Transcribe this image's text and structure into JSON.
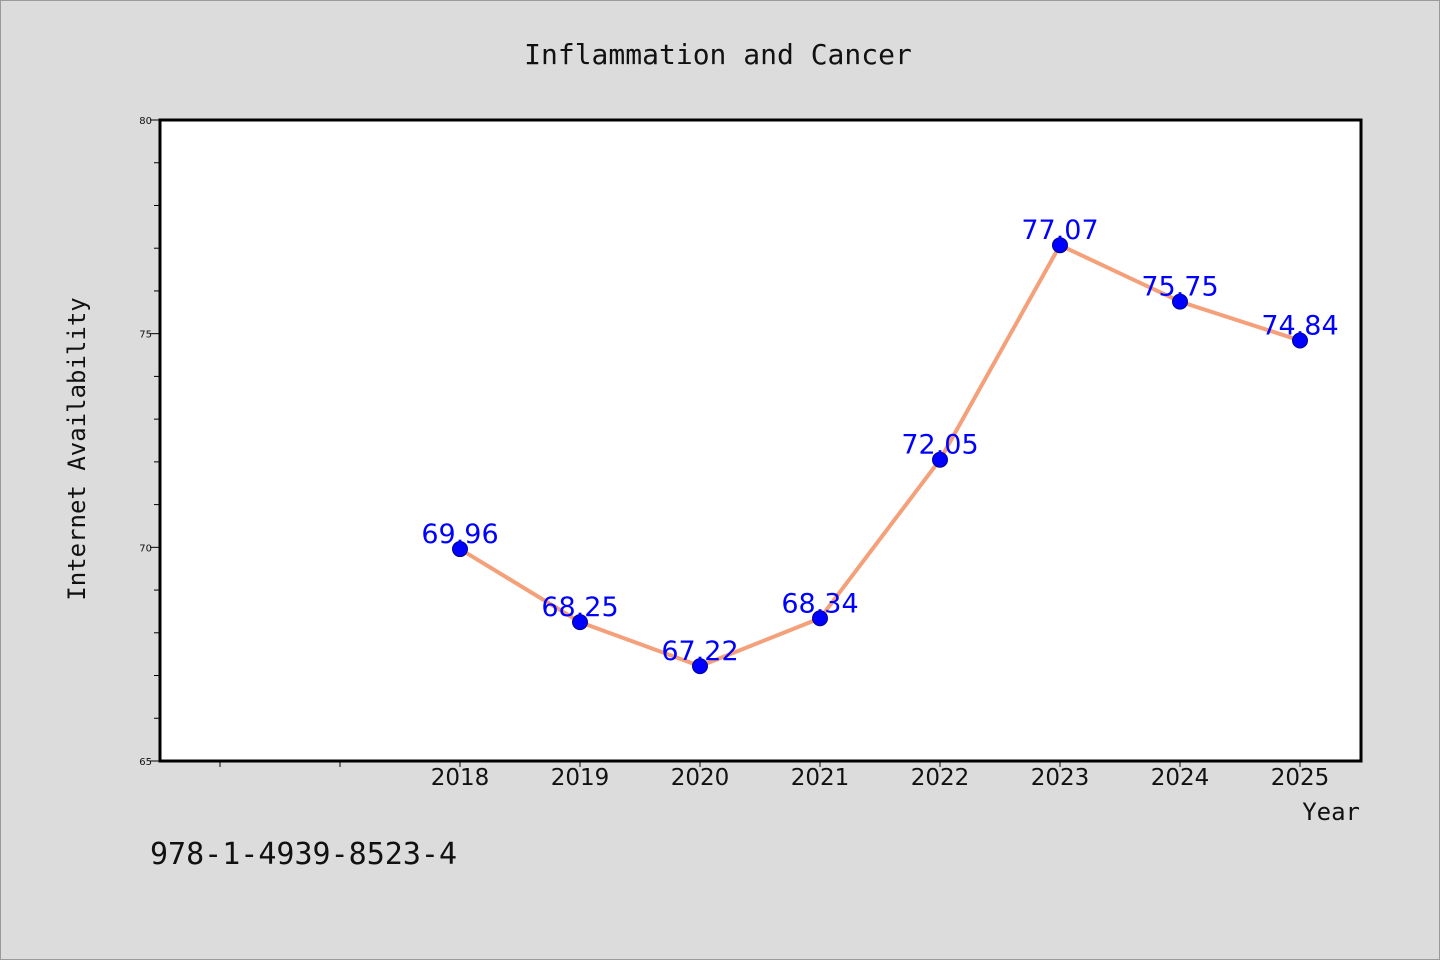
{
  "chart_data": {
    "type": "line",
    "title": "Inflammation and Cancer",
    "xlabel": "Year",
    "ylabel": "Internet Availability",
    "x": [
      "2018",
      "2019",
      "2020",
      "2021",
      "2022",
      "2023",
      "2024",
      "2025"
    ],
    "series": [
      {
        "values": [
          69.96,
          68.25,
          67.22,
          68.34,
          72.05,
          77.07,
          75.75,
          74.84
        ]
      }
    ],
    "data_labels": [
      "69.96",
      "68.25",
      "67.22",
      "68.34",
      "72.05",
      "77.07",
      "75.75",
      "74.84"
    ],
    "ylim": [
      65,
      80
    ],
    "yticks": [
      65,
      70,
      75,
      80
    ],
    "ytick_labels": [
      "65",
      "70",
      "75",
      "80"
    ],
    "grid": false,
    "legend": "none",
    "line_color": "#f4a07a",
    "marker_color": "#0000ff",
    "label_color": "#0000ff"
  },
  "annotation": "978-1-4939-8523-4"
}
